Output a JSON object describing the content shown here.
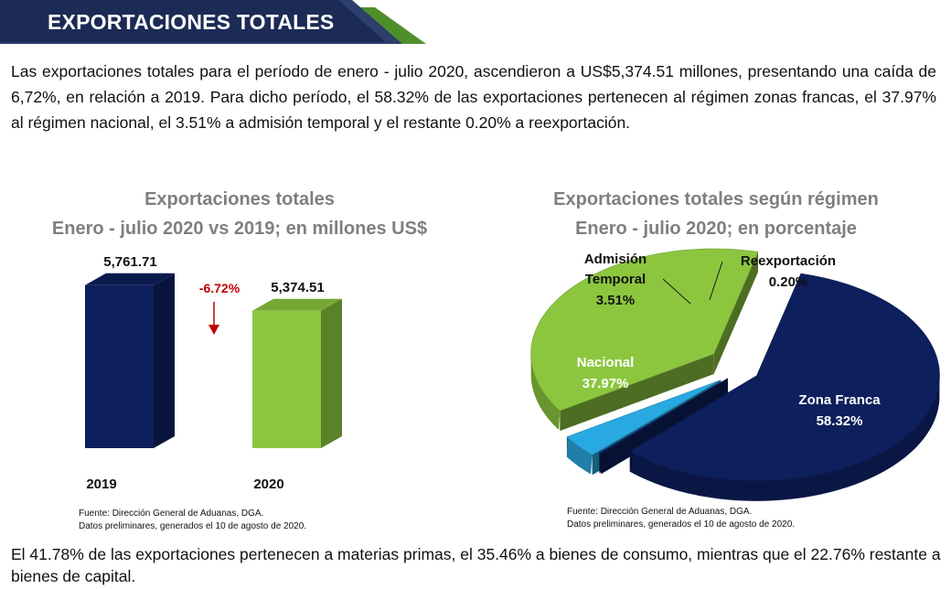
{
  "banner": {
    "title": "EXPORTACIONES TOTALES"
  },
  "intro_text": "Las exportaciones totales para el período de enero - julio 2020, ascendieron a US$5,374.51 millones, presentando una caída de 6,72%, en relación a 2019. Para dicho período, el 58.32% de las exportaciones pertenecen al régimen zonas francas, el 37.97% al régimen nacional, el 3.51% a admisión temporal y el restante 0.20% a reexportación.",
  "outro_text": "El 41.78% de las exportaciones pertenecen a materias primas, el 35.46% a bienes de consumo, mientras que el 22.76% restante a bienes de capital.",
  "colors": {
    "navy": "#0d1f5c",
    "green": "#8cc63f",
    "light_blue": "#29a9e1",
    "red": "#c00000",
    "title_gray": "#7f7f7f"
  },
  "chart_data": [
    {
      "type": "bar",
      "title": "Exportaciones totales",
      "subtitle": "Enero - julio 2020 vs 2019; en millones US$",
      "categories": [
        "2019",
        "2020"
      ],
      "values": [
        5761.71,
        5374.51
      ],
      "value_labels": [
        "5,761.71",
        "5,374.51"
      ],
      "annotation": "-6.72%",
      "colors": [
        "#0d1f5c",
        "#8cc63f"
      ],
      "source_line1": "Fuente: Dirección General de Aduanas, DGA.",
      "source_line2": "Datos preliminares, generados el 10 de agosto de 2020."
    },
    {
      "type": "pie",
      "title": "Exportaciones totales según régimen",
      "subtitle": "Enero - julio 2020; en porcentaje",
      "slices": [
        {
          "name": "Zona Franca",
          "value": 58.32,
          "label": "58.32%",
          "color": "#0d1f5c"
        },
        {
          "name": "Reexportación",
          "value": 0.2,
          "label": "0.20%",
          "color": "#0d1f5c"
        },
        {
          "name": "Admisión Temporal",
          "name_line1": "Admisión",
          "name_line2": "Temporal",
          "value": 3.51,
          "label": "3.51%",
          "color": "#29a9e1"
        },
        {
          "name": "Nacional",
          "value": 37.97,
          "label": "37.97%",
          "color": "#8cc63f"
        }
      ],
      "source_line1": "Fuente: Dirección General de Aduanas, DGA.",
      "source_line2": "Datos preliminares, generados el 10 de agosto de 2020."
    }
  ]
}
